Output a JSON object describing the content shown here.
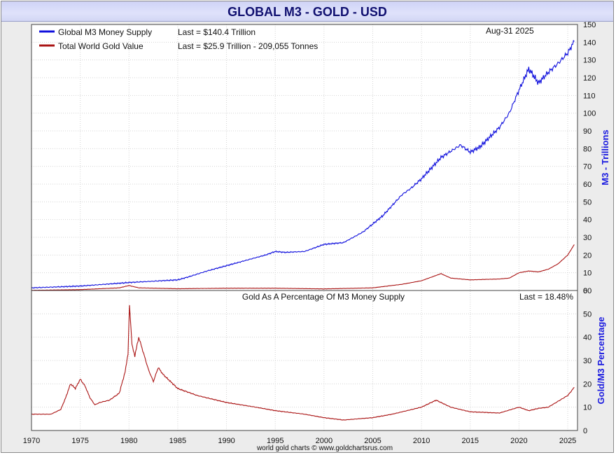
{
  "title": "GLOBAL M3 - GOLD - USD",
  "date": "Aug-31  2025",
  "footer": "world gold charts © www.goldchartsrus.com",
  "colors": {
    "m3": "#1010dd",
    "gold": "#aa1414",
    "axis_title": "#1a1ae0"
  },
  "chart_data": [
    {
      "type": "line",
      "ylabel": "M3 - Trillions",
      "ylim": [
        0,
        150
      ],
      "yticks": [
        0,
        10,
        20,
        30,
        40,
        50,
        60,
        70,
        80,
        90,
        100,
        110,
        120,
        130,
        140,
        150
      ],
      "grid": true,
      "legend_position": "top-left",
      "series": [
        {
          "name": "Global M3 Money Supply",
          "last": "Last = $140.4 Trillion",
          "color": "#1010dd",
          "x": [
            1970,
            1975,
            1980,
            1985,
            1986,
            1988,
            1990,
            1992,
            1994,
            1995,
            1996,
            1998,
            2000,
            2002,
            2004,
            2006,
            2008,
            2009,
            2010,
            2012,
            2014,
            2015,
            2016,
            2018,
            2019,
            2020,
            2021,
            2022,
            2023,
            2024,
            2025,
            2025.67
          ],
          "y": [
            1.5,
            2.5,
            4.5,
            6,
            7.5,
            11,
            14,
            17,
            20,
            22,
            21.5,
            22,
            26,
            27,
            33,
            42,
            54,
            58,
            63,
            75,
            82,
            78,
            81,
            92,
            100,
            113,
            125,
            117,
            123,
            128,
            134,
            140.4
          ]
        },
        {
          "name": "Total World Gold Value",
          "last": "Last = $25.9 Trillion - 209,055 Tonnes",
          "color": "#aa1414",
          "x": [
            1970,
            1975,
            1979,
            1980,
            1981,
            1985,
            1990,
            1995,
            2000,
            2005,
            2008,
            2010,
            2011,
            2012,
            2013,
            2015,
            2018,
            2019,
            2020,
            2021,
            2022,
            2023,
            2024,
            2025,
            2025.67
          ],
          "y": [
            0.1,
            0.5,
            1.5,
            2.8,
            1.5,
            1.0,
            1.3,
            1.3,
            0.9,
            1.5,
            3.5,
            5.5,
            7.5,
            9.5,
            7,
            6,
            6.5,
            7,
            10,
            11,
            10.5,
            12,
            15,
            20,
            25.9
          ]
        }
      ]
    },
    {
      "type": "line",
      "title": "Gold As A Percentage Of M3 Money Supply",
      "last": "Last = 18.48%",
      "ylabel": "Gold/M3 Percentage",
      "ylim": [
        0,
        60
      ],
      "yticks": [
        0,
        10,
        20,
        30,
        40,
        50,
        60
      ],
      "xlim": [
        1970,
        2026
      ],
      "xticks": [
        1970,
        1975,
        1980,
        1985,
        1990,
        1995,
        2000,
        2005,
        2010,
        2015,
        2020,
        2025
      ],
      "grid": true,
      "series": [
        {
          "name": "Gold/M3 Percentage",
          "color": "#aa1414",
          "x": [
            1970,
            1972,
            1973,
            1973.5,
            1974,
            1974.5,
            1975,
            1975.5,
            1976,
            1976.5,
            1977,
            1978,
            1979,
            1979.6,
            1979.9,
            1980.05,
            1980.3,
            1980.6,
            1981,
            1981.5,
            1982,
            1982.5,
            1983,
            1983.5,
            1984,
            1985,
            1987,
            1990,
            1993,
            1995,
            1998,
            2000,
            2002,
            2005,
            2007,
            2010,
            2011.5,
            2012,
            2013,
            2015,
            2018,
            2020,
            2021,
            2022,
            2023,
            2024,
            2025,
            2025.67
          ],
          "y": [
            7,
            7,
            9,
            14,
            20,
            18,
            22,
            19,
            14,
            11,
            12,
            13,
            16,
            25,
            33,
            54,
            37,
            32,
            40,
            33,
            26,
            21,
            27,
            24,
            22,
            18,
            15,
            12,
            10,
            8.5,
            7,
            5.5,
            4.5,
            5.5,
            7,
            10,
            13,
            12,
            10,
            8,
            7.5,
            10,
            8.5,
            9.5,
            10,
            12.5,
            15,
            18.48
          ]
        }
      ]
    }
  ]
}
